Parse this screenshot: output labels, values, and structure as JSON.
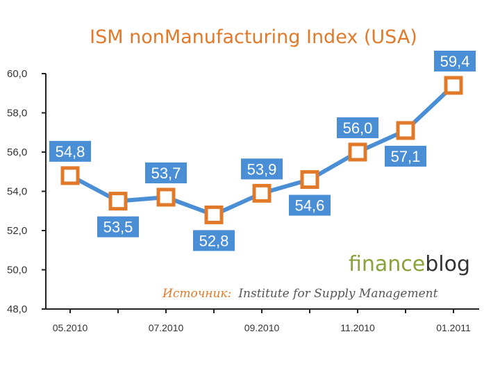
{
  "chart_data": {
    "type": "line",
    "title": "ISM nonManufacturing Index (USA)",
    "xlabel": "",
    "ylabel": "",
    "ylim": [
      48.0,
      60.0
    ],
    "yticks": [
      "60,0",
      "58,0",
      "56,0",
      "54,0",
      "52,0",
      "50,0",
      "48,0"
    ],
    "ytick_values": [
      60,
      58,
      56,
      54,
      52,
      50,
      48
    ],
    "x": [
      "05.2010",
      "06.2010",
      "07.2010",
      "08.2010",
      "09.2010",
      "10.2010",
      "11.2010",
      "12.2010",
      "01.2011"
    ],
    "xtick_labels": [
      "05.2010",
      "",
      "07.2010",
      "",
      "09.2010",
      "",
      "11.2010",
      "",
      "01.2011"
    ],
    "values": [
      54.8,
      53.5,
      53.7,
      52.8,
      53.9,
      54.6,
      56.0,
      57.1,
      59.4
    ],
    "value_labels": [
      "54,8",
      "53,5",
      "53,7",
      "52,8",
      "53,9",
      "54,6",
      "56,0",
      "57,1",
      "59,4"
    ],
    "label_position": [
      "above",
      "below",
      "above",
      "below",
      "above",
      "below",
      "above",
      "below",
      "above"
    ],
    "grid": false,
    "colors": {
      "line": "#4a8fd6",
      "marker": "#e07a2a",
      "label_bg": "#4a8fd6",
      "title": "#e07a2a"
    }
  },
  "branding": {
    "part1": "finance",
    "part2": "blog"
  },
  "source": {
    "label": "Источник:",
    "text": "Institute for Supply Management"
  }
}
